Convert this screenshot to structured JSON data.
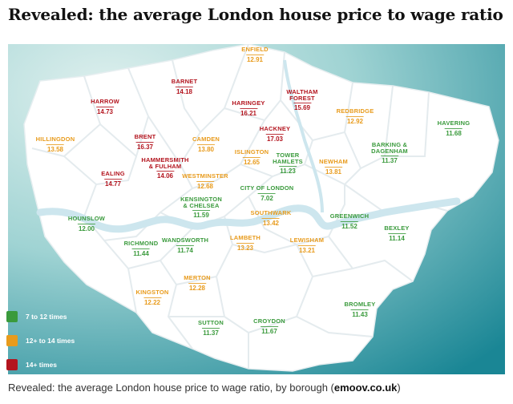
{
  "headline": "Revealed: the average London house price to wage ratio",
  "caption": {
    "text": "Revealed: the average London house price to wage ratio, by borough (",
    "source": "emoov.co.uk",
    "close": ")"
  },
  "colors": {
    "green": "#3a9a3c",
    "orange": "#e89b1c",
    "red": "#b3141e",
    "sea_light": "#d7ecea",
    "sea_dark": "#1e8f9c",
    "land": "#ffffff",
    "river": "#cfe8ef"
  },
  "legend": [
    {
      "label": "7 to 12 times",
      "color": "green"
    },
    {
      "label": "12+ to 14 times",
      "color": "orange"
    },
    {
      "label": "14+ times",
      "color": "red"
    }
  ],
  "boroughs": [
    {
      "name": "ENFIELD",
      "value": "12.91",
      "color": "orange"
    },
    {
      "name": "BARNET",
      "value": "14.18",
      "color": "red"
    },
    {
      "name": "HARROW",
      "value": "14.73",
      "color": "red"
    },
    {
      "name": "WALTHAM",
      "name2": "FOREST",
      "value": "15.69",
      "color": "red"
    },
    {
      "name": "HARINGEY",
      "value": "16.21",
      "color": "red"
    },
    {
      "name": "REDBRIDGE",
      "value": "12.92",
      "color": "orange"
    },
    {
      "name": "HAVERING",
      "value": "11.68",
      "color": "green"
    },
    {
      "name": "HILLINGDON",
      "value": "13.58",
      "color": "orange"
    },
    {
      "name": "BRENT",
      "value": "16.37",
      "color": "red"
    },
    {
      "name": "CAMDEN",
      "value": "13.80",
      "color": "orange"
    },
    {
      "name": "HACKNEY",
      "value": "17.03",
      "color": "red"
    },
    {
      "name": "ISLINGTON",
      "value": "12.65",
      "color": "orange"
    },
    {
      "name": "TOWER",
      "name2": "HAMLETS",
      "value": "11.23",
      "color": "green"
    },
    {
      "name": "NEWHAM",
      "value": "13.81",
      "color": "orange"
    },
    {
      "name": "BARKING &",
      "name2": "DAGENHAM",
      "value": "11.37",
      "color": "green"
    },
    {
      "name": "HAMMERSMITH",
      "name2": "& FULHAM",
      "value": "14.06",
      "color": "red"
    },
    {
      "name": "EALING",
      "value": "14.77",
      "color": "red"
    },
    {
      "name": "WESTMINSTER",
      "value": "12.68",
      "color": "orange"
    },
    {
      "name": "CITY OF LONDON",
      "value": "7.02",
      "color": "green"
    },
    {
      "name": "KENSINGTON",
      "name2": "& CHELSEA",
      "value": "11.59",
      "color": "green"
    },
    {
      "name": "SOUTHWARK",
      "value": "13.42",
      "color": "orange"
    },
    {
      "name": "GREENWICH",
      "value": "11.52",
      "color": "green"
    },
    {
      "name": "HOUNSLOW",
      "value": "12.00",
      "color": "green"
    },
    {
      "name": "BEXLEY",
      "value": "11.14",
      "color": "green"
    },
    {
      "name": "RICHMOND",
      "value": "11.44",
      "color": "green"
    },
    {
      "name": "WANDSWORTH",
      "value": "11.74",
      "color": "green"
    },
    {
      "name": "LAMBETH",
      "value": "13.23",
      "color": "orange"
    },
    {
      "name": "LEWISHAM",
      "value": "13.21",
      "color": "orange"
    },
    {
      "name": "MERTON",
      "value": "12.28",
      "color": "orange"
    },
    {
      "name": "KINGSTON",
      "value": "12.22",
      "color": "orange"
    },
    {
      "name": "SUTTON",
      "value": "11.37",
      "color": "green"
    },
    {
      "name": "CROYDON",
      "value": "11.67",
      "color": "green"
    },
    {
      "name": "BROMLEY",
      "value": "11.43",
      "color": "green"
    }
  ]
}
